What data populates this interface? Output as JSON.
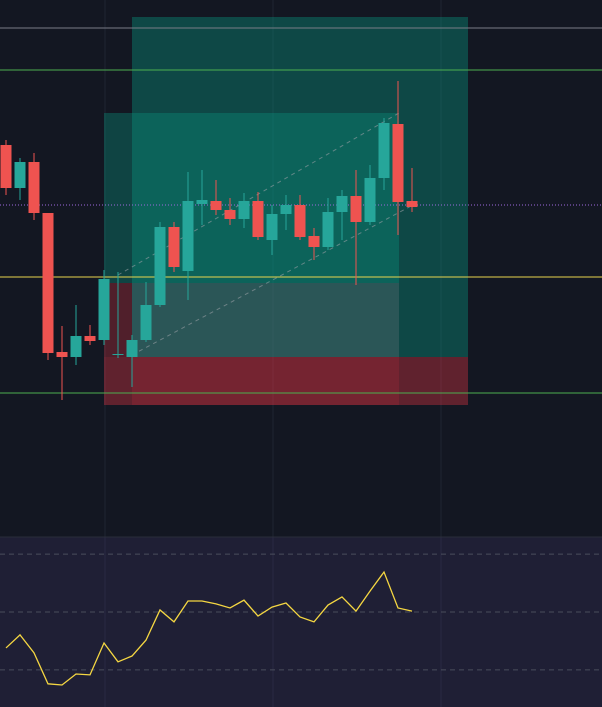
{
  "chart_data": [
    {
      "type": "candlestick",
      "categories": [
        null,
        null,
        null,
        null,
        null,
        null,
        null,
        null,
        null,
        null,
        null,
        null,
        null,
        null,
        null,
        null,
        null,
        null,
        null,
        null,
        null,
        null,
        null,
        null,
        null,
        null,
        null,
        null,
        null,
        null
      ],
      "open": [
        355,
        312,
        338,
        287,
        148,
        143,
        164,
        160,
        146,
        143,
        160,
        195,
        273,
        229,
        296,
        299,
        290,
        281,
        299,
        260,
        286,
        295,
        264,
        253,
        288,
        304,
        278,
        322,
        376,
        299
      ],
      "high": [
        360,
        342,
        347,
        287,
        174,
        195,
        175,
        230,
        228,
        165,
        218,
        278,
        278,
        328,
        330,
        320,
        302,
        307,
        308,
        295,
        305,
        305,
        272,
        302,
        310,
        330,
        335,
        382,
        419,
        332
      ],
      "low": [
        305,
        300,
        280,
        140,
        100,
        135,
        155,
        155,
        142,
        113,
        158,
        193,
        228,
        200,
        275,
        285,
        275,
        272,
        260,
        245,
        270,
        260,
        240,
        250,
        260,
        215,
        275,
        310,
        265,
        288
      ],
      "close": [
        312,
        338,
        287,
        147,
        143,
        164,
        159,
        221,
        146,
        160,
        195,
        273,
        233,
        299,
        300,
        290,
        281,
        299,
        263,
        286,
        295,
        263,
        253,
        288,
        304,
        278,
        322,
        377,
        298,
        293
      ],
      "ylim": [
        -35,
        500
      ],
      "up_color": "#26a69a",
      "down_color": "#ef5350",
      "levels": [
        {
          "value": 472,
          "color": "#787b86",
          "style": "solid"
        },
        {
          "value": 430,
          "color": "#4caf50",
          "style": "solid"
        },
        {
          "value": 223,
          "color": "#e8d44d",
          "style": "solid"
        },
        {
          "value": 107,
          "color": "#4caf50",
          "style": "solid"
        },
        {
          "value": 295,
          "color": "#9c6ade",
          "style": "dotted"
        }
      ]
    },
    {
      "type": "line",
      "categories": [
        null,
        null,
        null,
        null,
        null,
        null,
        null,
        null,
        null,
        null,
        null,
        null,
        null,
        null,
        null,
        null,
        null,
        null,
        null,
        null,
        null,
        null,
        null,
        null,
        null,
        null,
        null,
        null,
        null,
        null
      ],
      "values": [
        37.6,
        42.1,
        35.9,
        25.2,
        24.8,
        28.6,
        28.3,
        39.3,
        32.8,
        34.8,
        40.3,
        50.7,
        46.6,
        53.8,
        53.8,
        52.8,
        51.4,
        54.1,
        48.6,
        51.7,
        53.1,
        48.3,
        46.6,
        52.4,
        55.2,
        50.3,
        57.2,
        63.8,
        51.4,
        50.3
      ],
      "color": "#f5d742",
      "ylim": [
        17.2,
        75.9
      ],
      "levels": [
        70,
        50,
        30
      ]
    }
  ]
}
